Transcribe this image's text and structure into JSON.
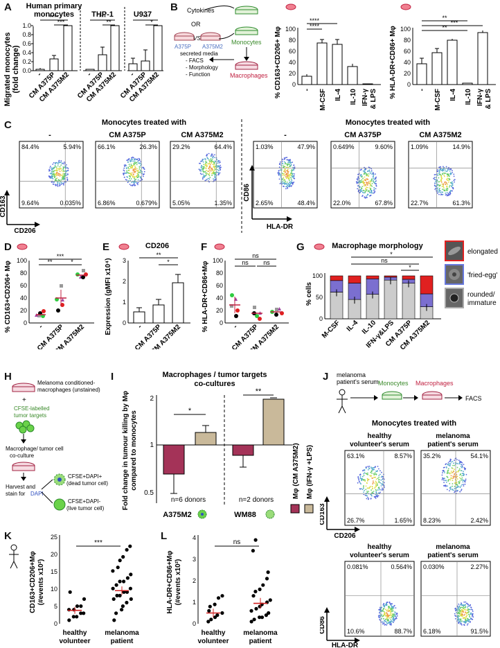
{
  "panels": {
    "A": {
      "label": "A",
      "ylabel_line1": "Migrated monocytes",
      "ylabel_line2": "(fold change)",
      "yticks": [
        "0.0",
        "0.2",
        "0.4",
        "0.6",
        "0.8",
        "1.0"
      ],
      "groups": [
        {
          "title_line1": "Human primary",
          "title_line2": "monocytes",
          "sig_top": "****",
          "sig_inner": "***"
        },
        {
          "title_line1": "",
          "title_line2": "THP-1",
          "sig_top": "***",
          "sig_inner": "**"
        },
        {
          "title_line1": "",
          "title_line2": "U937",
          "sig_top": "**",
          "sig_inner": "*"
        }
      ],
      "categories": [
        "-",
        "CM A375P",
        "CM A375M2"
      ]
    },
    "B": {
      "label": "B",
      "cytokines": "Cytokines",
      "or": "OR",
      "vs": "VS",
      "a375p": "A375P",
      "a375m2": "A375M2",
      "secreted": "secreted media",
      "monocytes": "Monocytes",
      "macrophages": "Macrophages",
      "readouts": [
        "- FACS",
        "- Morphology",
        "- Function"
      ],
      "chart1_ylabel": "% CD163+CD206+ Mφ",
      "chart2_ylabel": "% HLA-DR+CD86+ Mφ",
      "yticks": [
        "0",
        "20",
        "40",
        "60",
        "80",
        "100"
      ],
      "cats": [
        "-",
        "M-CSF",
        "IL-4",
        "IL-10",
        "IFN-γ",
        "& LPS"
      ],
      "sig1": [
        "****",
        "****"
      ],
      "sig2": [
        "**",
        "**",
        "***"
      ]
    },
    "C": {
      "label": "C",
      "title_left": "Monocytes treated with",
      "title_right": "Monocytes treated with",
      "left_cols": [
        "-",
        "CM A375P",
        "CM A375M2"
      ],
      "right_cols": [
        "-",
        "CM  A375P",
        "CM  A375M2"
      ],
      "left_y": "CD163",
      "left_x": "CD206",
      "right_y": "CD86",
      "right_x": "HLA-DR",
      "left_plots": [
        {
          "tl": "84.4%",
          "tr": "5.94%",
          "bl": "9.64%",
          "br": "0.035%"
        },
        {
          "tl": "66.1%",
          "tr": "26.3%",
          "bl": "6.86%",
          "br": "0.679%"
        },
        {
          "tl": "29.2%",
          "tr": "64.4%",
          "bl": "5.05%",
          "br": "1.35%"
        }
      ],
      "right_plots": [
        {
          "tl": "1.03%",
          "tr": "47.9%",
          "bl": "2.65%",
          "br": "48.4%"
        },
        {
          "tl": "0.649%",
          "tr": "9.60%",
          "bl": "22.0%",
          "br": "67.8%"
        },
        {
          "tl": "1.09%",
          "tr": "14.9%",
          "bl": "22.7%",
          "br": "61.3%"
        }
      ]
    },
    "D": {
      "label": "D",
      "ylabel": "% CD163+CD206+ Mφ",
      "yticks": [
        "0",
        "20",
        "40",
        "60",
        "80",
        "100"
      ],
      "cats": [
        "-",
        "CM A375P",
        "CM A375M2"
      ],
      "sig": [
        "***",
        "**",
        "*"
      ]
    },
    "E": {
      "label": "E",
      "title": "CD206",
      "ylabel": "Expression (gMFI x10⁴)",
      "yticks": [
        "0",
        "1",
        "2",
        "3"
      ],
      "cats": [
        "-",
        "CM A375P",
        "CM A375M2"
      ],
      "sig": [
        "**",
        "*"
      ]
    },
    "F": {
      "label": "F",
      "ylabel": "% HLA-DR+CD86+Mφ",
      "yticks": [
        "0",
        "20",
        "40",
        "60",
        "80",
        "100"
      ],
      "cats": [
        "-",
        "CM A375P",
        "CM A375M2"
      ],
      "sig": [
        "ns",
        "ns",
        "ns"
      ]
    },
    "G": {
      "label": "G",
      "title": "Macrophage morphology",
      "ylabel": "% cells",
      "yticks": [
        "0",
        "50",
        "100"
      ],
      "cats": [
        "M-CSF",
        "IL-4",
        "IL-10",
        "IFN-γ&LPS",
        "CM A375P",
        "CM A375M2"
      ],
      "sig": [
        "*",
        "ns",
        "*"
      ],
      "legend": [
        "elongated",
        "'fried-egg'",
        "rounded/",
        "immature"
      ]
    },
    "H": {
      "label": "H",
      "steps": [
        "Melanoma conditioned-",
        "macrophages (unstained)",
        "+",
        "CFSE-labelled",
        "tumor targets",
        "Macrophage/ tumor cell",
        "co-culture",
        "Harvest and",
        "stain for ",
        "DAPI",
        "CFSE+DAPI+",
        "(dead tumor cell)",
        "CFSE+DAPI-",
        "(live tumor cell)"
      ]
    },
    "I": {
      "label": "I",
      "title_line1": "Macrophages / tumor targets",
      "title_line2": "co-cultures",
      "ylabel_line1": "Fold change in tumour killing by Mφ",
      "ylabel_line2": "compared to monocytes",
      "yticks": [
        "0.5",
        "1",
        "2"
      ],
      "sig": [
        "*",
        "**"
      ],
      "donors": [
        "n=6 donors",
        "n=2 donors"
      ],
      "cats": [
        "A375M2",
        "WM88"
      ],
      "legend": [
        "Mφ (CM A375M2)",
        "Mφ (IFN-γ +LPS)"
      ]
    },
    "J": {
      "label": "J",
      "flow": [
        "melanoma",
        "patient's serum",
        "Monocytes",
        "Macrophages",
        "FACS"
      ],
      "title": "Monocytes treated with",
      "cols_top": [
        "healthy",
        "volunteer's serum",
        "melanoma",
        "patient's serum"
      ],
      "top_y": "CD163",
      "top_x": "CD206",
      "bottom_y": "CD86",
      "bottom_x": "HLA-DR",
      "top_plots": [
        {
          "tl": "63.1%",
          "tr": "8.57%",
          "bl": "26.7%",
          "br": "1.65%"
        },
        {
          "tl": "35.2%",
          "tr": "54.1%",
          "bl": "8.23%",
          "br": "2.42%"
        }
      ],
      "bottom_plots": [
        {
          "tl": "0.081%",
          "tr": "0.564%",
          "bl": "10.6%",
          "br": "88.7%"
        },
        {
          "tl": "0.030%",
          "tr": "2.27%",
          "bl": "6.18%",
          "br": "91.5%"
        }
      ]
    },
    "K": {
      "label": "K",
      "ylabel_line1": "CD163+CD206+Mφ",
      "ylabel_line2": "(#events x10²)",
      "yticks": [
        "0",
        "5",
        "10",
        "15",
        "20",
        "25"
      ],
      "sig": "***",
      "cats": [
        "healthy",
        "volunteer",
        "melanoma",
        "patient"
      ]
    },
    "L": {
      "label": "L",
      "ylabel_line1": "HLA-DR+CD86+Mφ",
      "ylabel_line2": "(#events x10²)",
      "yticks": [
        "0",
        "1",
        "2",
        "3",
        "4"
      ],
      "sig": "ns",
      "cats": [
        "healthy",
        "volunteer",
        "melanoma",
        "patient"
      ]
    }
  },
  "colors": {
    "bar": "#ffffff",
    "stroke": "#000000",
    "elongated": "#e02020",
    "friedegg": "#7b6fd0",
    "rounded": "#cccccc",
    "maroon": "#a43358",
    "tan": "#c9b99a",
    "green_text": "#3a8a2a",
    "blue_text": "#4a6fc0",
    "red_text": "#c02040",
    "k_err": "#d02020"
  }
}
